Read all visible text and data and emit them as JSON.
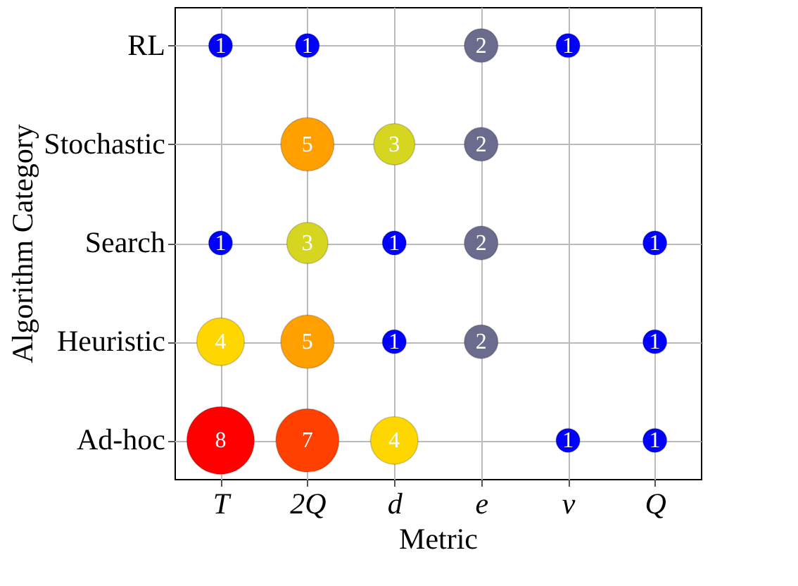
{
  "chart_data": {
    "type": "heatmap",
    "xlabel": "Metric",
    "ylabel": "Algorithm Category",
    "categories": [
      "T",
      "2Q",
      "d",
      "e",
      "v",
      "Q"
    ],
    "y_categories": [
      "RL",
      "Stochastic",
      "Search",
      "Heuristic",
      "Ad-hoc"
    ],
    "cells": [
      [
        1,
        1,
        null,
        2,
        1,
        null
      ],
      [
        null,
        5,
        3,
        2,
        null,
        null
      ],
      [
        1,
        3,
        1,
        2,
        null,
        1
      ],
      [
        4,
        5,
        1,
        2,
        null,
        1
      ],
      [
        8,
        7,
        4,
        null,
        1,
        1
      ]
    ],
    "colors": [
      [
        "#0000ff",
        "#0000ff",
        null,
        "#6b6b8e",
        "#0000ff",
        null
      ],
      [
        null,
        "#ffa000",
        "#d6d620",
        "#6b6b8e",
        null,
        null
      ],
      [
        "#0000ff",
        "#d6d620",
        "#0000ff",
        "#6b6b8e",
        null,
        "#0000ff"
      ],
      [
        "#ffd700",
        "#ffa000",
        "#0000ff",
        "#6b6b8e",
        null,
        "#0000ff"
      ],
      [
        "#ff0000",
        "#ff4000",
        "#ffd700",
        null,
        "#0000ff",
        "#0000ff"
      ]
    ],
    "data_labels": true,
    "grid": true
  }
}
